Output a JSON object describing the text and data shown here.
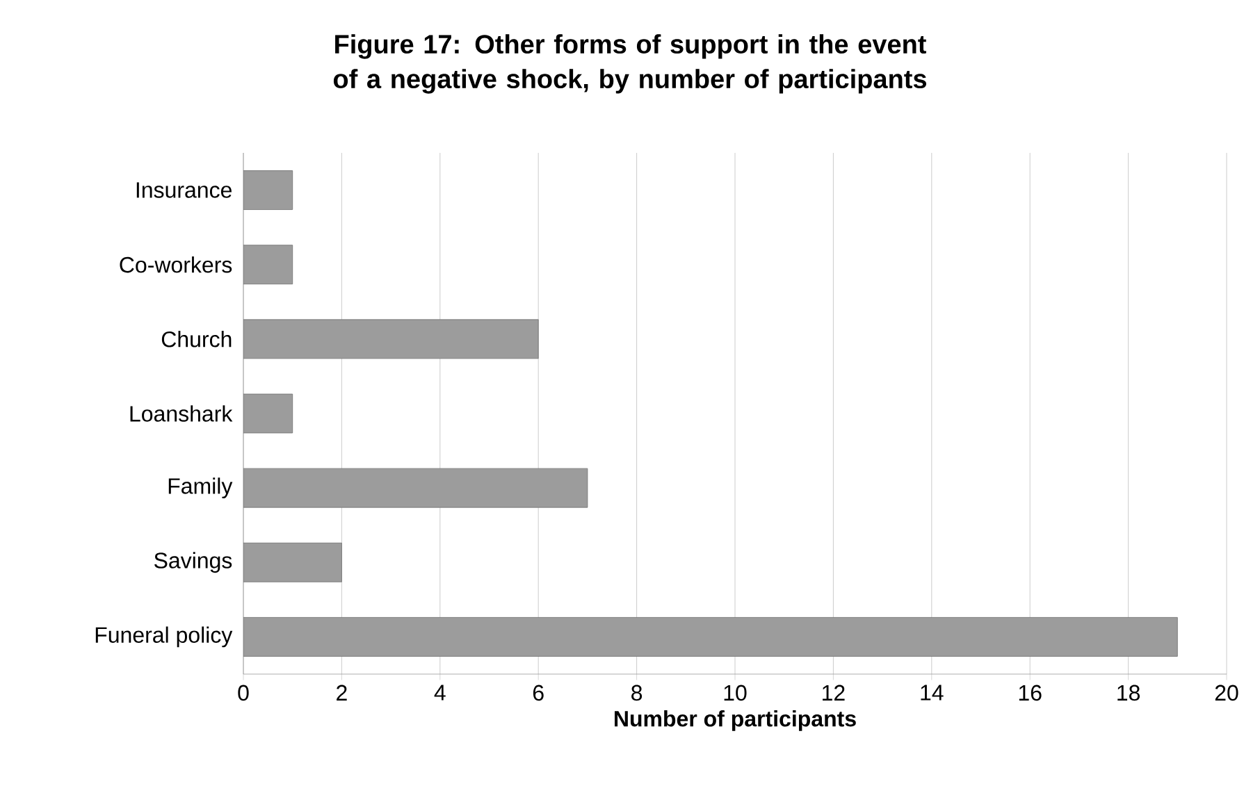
{
  "chart_data": {
    "type": "bar",
    "orientation": "horizontal",
    "title": "Figure 17: Other forms of support in the event of a negative shock, by number of participants",
    "xlabel": "Number of participants",
    "categories": [
      "Insurance",
      "Co-workers",
      "Church",
      "Loanshark",
      "Family",
      "Savings",
      "Funeral policy"
    ],
    "values": [
      1,
      1,
      6,
      1,
      7,
      2,
      19
    ],
    "color": "#9c9c9c",
    "xlim": [
      0,
      20
    ],
    "xticks": [
      0,
      2,
      4,
      6,
      8,
      10,
      12,
      14,
      16,
      18,
      20
    ],
    "grid": "x"
  }
}
